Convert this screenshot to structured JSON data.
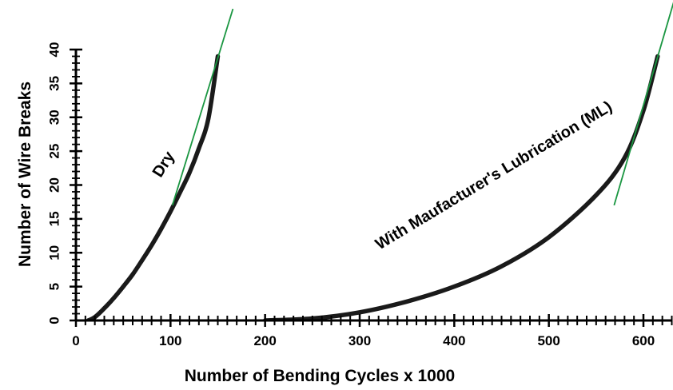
{
  "chart_data": {
    "type": "line",
    "title": "",
    "xlabel": "Number of Bending Cycles x 1000",
    "ylabel": "Number of Wire Breaks",
    "xlim": [
      0,
      630
    ],
    "ylim": [
      0,
      40
    ],
    "x_ticks": [
      "0",
      "100",
      "200",
      "300",
      "400",
      "500",
      "600"
    ],
    "y_ticks": [
      "0",
      "5",
      "10",
      "15",
      "20",
      "25",
      "30",
      "35",
      "40"
    ],
    "grid": false,
    "legend": "none",
    "series": [
      {
        "annotation": "Dry",
        "color": "#1a1a1a",
        "x": [
          13,
          20,
          30,
          40,
          50,
          60,
          70,
          80,
          90,
          100,
          110,
          120,
          130,
          140,
          150
        ],
        "y": [
          0,
          0.5,
          1.8,
          3.3,
          5.0,
          6.8,
          8.9,
          11.1,
          13.5,
          16.1,
          18.9,
          21.8,
          25.4,
          29.8,
          39
        ]
      },
      {
        "annotation": "With Maufacturer's Lubrication (ML)",
        "color": "#1a1a1a",
        "x": [
          200,
          250,
          300,
          350,
          400,
          450,
          500,
          550,
          580,
          600,
          615
        ],
        "y": [
          0,
          0.3,
          1.2,
          2.8,
          5.0,
          8.0,
          12.3,
          18.5,
          24.0,
          31.0,
          39
        ]
      }
    ],
    "tangent_lines": [
      {
        "color": "#1a9641",
        "x": [
          102,
          166
        ],
        "y": [
          17,
          46
        ]
      },
      {
        "color": "#1a9641",
        "x": [
          569,
          632
        ],
        "y": [
          17,
          47
        ]
      }
    ]
  }
}
